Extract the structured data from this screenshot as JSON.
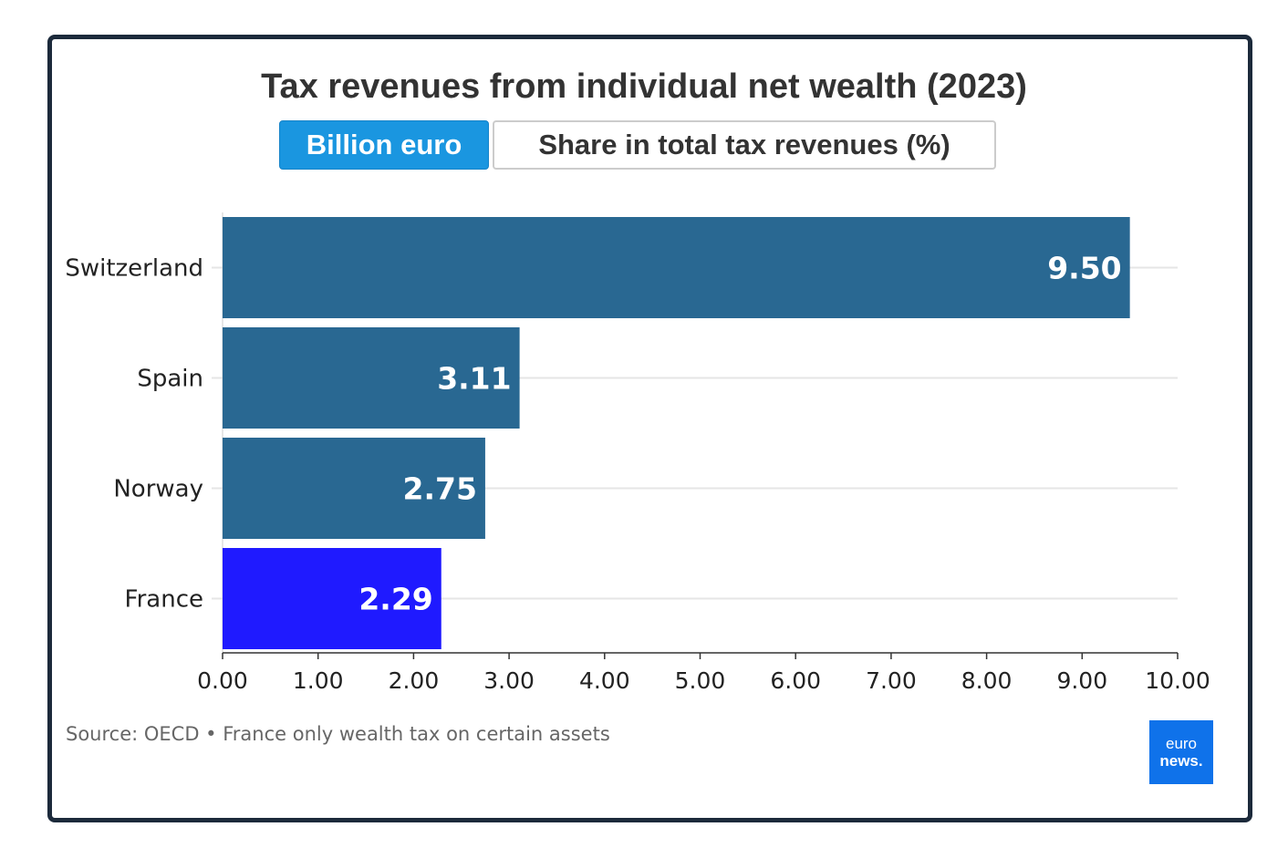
{
  "chart_data": {
    "type": "bar",
    "orientation": "horizontal",
    "title": "Tax revenues from individual net wealth (2023)",
    "categories": [
      "Switzerland",
      "Spain",
      "Norway",
      "France"
    ],
    "values": [
      9.5,
      3.11,
      2.75,
      2.29
    ],
    "value_labels": [
      "9.50",
      "3.11",
      "2.75",
      "2.29"
    ],
    "bar_colors": [
      "#296892",
      "#296892",
      "#296892",
      "#1f1aff"
    ],
    "xlim": [
      0,
      10
    ],
    "x_ticks": [
      "0.00",
      "1.00",
      "2.00",
      "3.00",
      "4.00",
      "5.00",
      "6.00",
      "7.00",
      "8.00",
      "9.00",
      "10.00"
    ],
    "xlabel": "",
    "ylabel": "",
    "grid": "horizontal category lines"
  },
  "toggle": {
    "options": [
      "Billion euro",
      "Share in total tax revenues (%)"
    ],
    "selected": "Billion euro",
    "active_color": "#1a96e0"
  },
  "source": "Source: OECD • France only wealth tax on certain assets",
  "logo": {
    "line1": "euro",
    "line2": "news."
  }
}
